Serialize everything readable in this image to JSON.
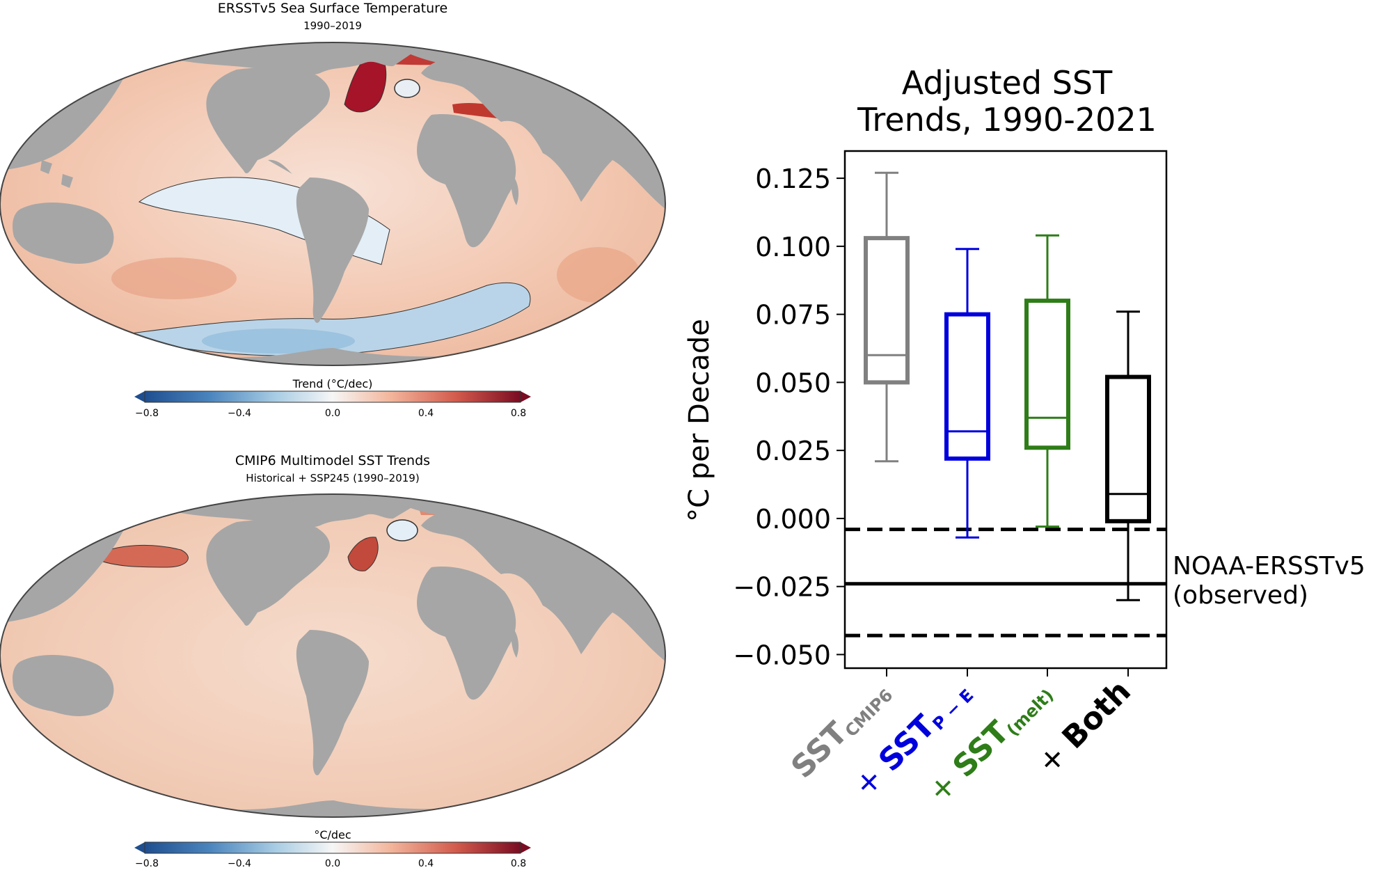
{
  "maps": [
    {
      "title": "ERSSTv5 Sea Surface Temperature",
      "subtitle": "1990–2019",
      "colorbar_label": "Trend (°C/dec)",
      "ticks": [
        "−0.8",
        "−0.4",
        "0.0",
        "0.4",
        "0.8"
      ]
    },
    {
      "title": "CMIP6 Multimodel SST Trends",
      "subtitle": "Historical + SSP245 (1990–2019)",
      "colorbar_label": "°C/dec",
      "ticks": [
        "−0.8",
        "−0.4",
        "0.0",
        "0.4",
        "0.8"
      ]
    }
  ],
  "colors": {
    "land": "#a6a6a6",
    "ocean_warm": "#f1c7b0",
    "ocean_hot": "#b2182b",
    "ocean_cool": "#d5e6f1",
    "ocean_cold": "#8fbbd9",
    "cbar_stops": [
      "#1f4e8f",
      "#4a84bd",
      "#a9cde4",
      "#f6f6f6",
      "#f3b79e",
      "#d25a4c",
      "#7a0c22"
    ]
  },
  "chart_data": {
    "type": "box",
    "title": "Adjusted SST Trends, 1990-2021",
    "title_lines": [
      "Adjusted SST",
      "Trends, 1990-2021"
    ],
    "ylabel": "°C per Decade",
    "ylim": [
      -0.055,
      0.135
    ],
    "yticks": [
      0.125,
      0.1,
      0.075,
      0.05,
      0.025,
      0.0,
      -0.025,
      -0.05
    ],
    "ytick_labels": [
      "0.125",
      "0.100",
      "0.075",
      "0.050",
      "0.025",
      "0.000",
      "−0.025",
      "−0.050"
    ],
    "boxes": [
      {
        "name": "SST_CMIP6",
        "label": "SST",
        "sub": "CMIP6",
        "prefix": "",
        "color": "#808080",
        "whisker_low": 0.021,
        "q1": 0.05,
        "median": 0.06,
        "q3": 0.103,
        "whisker_high": 0.127
      },
      {
        "name": "+ SST_P-E",
        "label": "SST",
        "sub": "P − E",
        "prefix": "+ ",
        "color": "#0000dd",
        "whisker_low": -0.007,
        "q1": 0.022,
        "median": 0.032,
        "q3": 0.075,
        "whisker_high": 0.099
      },
      {
        "name": "+ SST_(melt)",
        "label": "SST",
        "sub": "(melt)",
        "prefix": "+ ",
        "color": "#2e7d18",
        "whisker_low": -0.003,
        "q1": 0.026,
        "median": 0.037,
        "q3": 0.08,
        "whisker_high": 0.104
      },
      {
        "name": "+ Both",
        "label": "Both",
        "sub": "",
        "prefix": "+ ",
        "color": "#000000",
        "whisker_low": -0.03,
        "q1": -0.001,
        "median": 0.009,
        "q3": 0.052,
        "whisker_high": 0.076
      }
    ],
    "reference": {
      "label_lines": [
        "NOAA-ERSSTv5",
        "(observed)"
      ],
      "value": -0.024,
      "lower": -0.043,
      "upper": -0.004
    }
  }
}
